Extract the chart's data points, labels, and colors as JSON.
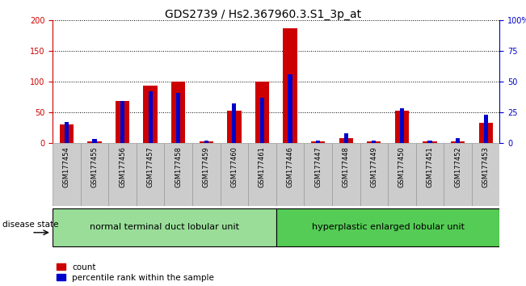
{
  "title": "GDS2739 / Hs2.367960.3.S1_3p_at",
  "samples": [
    "GSM177454",
    "GSM177455",
    "GSM177456",
    "GSM177457",
    "GSM177458",
    "GSM177459",
    "GSM177460",
    "GSM177461",
    "GSM177446",
    "GSM177447",
    "GSM177448",
    "GSM177449",
    "GSM177450",
    "GSM177451",
    "GSM177452",
    "GSM177453"
  ],
  "count_values": [
    30,
    2,
    68,
    93,
    100,
    2,
    52,
    100,
    186,
    2,
    8,
    3,
    52,
    2,
    2,
    33
  ],
  "percentile_values": [
    17,
    3,
    34,
    42,
    41,
    2,
    32,
    37,
    56,
    2,
    8,
    2,
    28,
    2,
    4,
    23
  ],
  "group1_label": "normal terminal duct lobular unit",
  "group2_label": "hyperplastic enlarged lobular unit",
  "group1_count": 8,
  "group2_count": 8,
  "legend_count_label": "count",
  "legend_percentile_label": "percentile rank within the sample",
  "ylim_left": [
    0,
    200
  ],
  "ylim_right": [
    0,
    100
  ],
  "yticks_left": [
    0,
    50,
    100,
    150,
    200
  ],
  "yticks_right": [
    0,
    25,
    50,
    75,
    100
  ],
  "yticklabels_right": [
    "0",
    "25",
    "50",
    "75",
    "100%"
  ],
  "bar_color_count": "#cc0000",
  "bar_color_percentile": "#0000cc",
  "group1_bg": "#99dd99",
  "group2_bg": "#55cc55",
  "xtick_bg": "#cccccc",
  "disease_state_label": "disease state",
  "title_fontsize": 10,
  "tick_fontsize": 7,
  "label_fontsize": 8,
  "bar_width": 0.5,
  "pct_bar_width": 0.15
}
